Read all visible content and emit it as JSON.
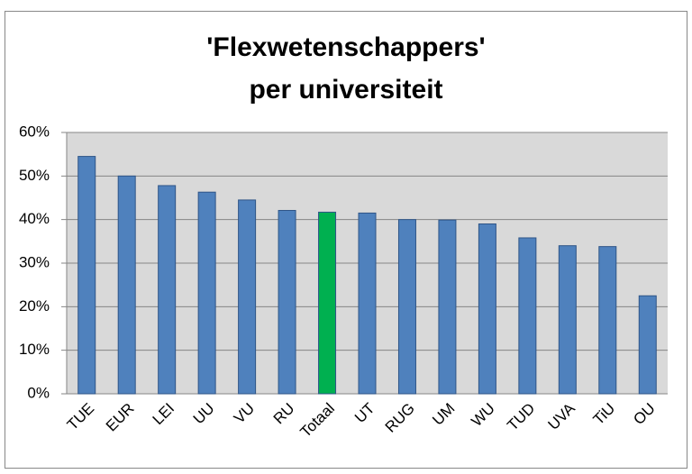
{
  "chart_data": {
    "type": "bar",
    "title": [
      "'Flexwetenschappers'",
      "per universiteit"
    ],
    "categories": [
      "TUE",
      "EUR",
      "LEI",
      "UU",
      "VU",
      "RU",
      "Totaal",
      "UT",
      "RUG",
      "UM",
      "WU",
      "TUD",
      "UVA",
      "TiU",
      "OU"
    ],
    "values": [
      54.5,
      50,
      47.8,
      46.3,
      44.5,
      42.1,
      41.7,
      41.5,
      40,
      39.9,
      39,
      35.8,
      34,
      33.8,
      22.5
    ],
    "colors": [
      "#4f81bd",
      "#4f81bd",
      "#4f81bd",
      "#4f81bd",
      "#4f81bd",
      "#4f81bd",
      "#00b050",
      "#4f81bd",
      "#4f81bd",
      "#4f81bd",
      "#4f81bd",
      "#4f81bd",
      "#4f81bd",
      "#4f81bd",
      "#4f81bd"
    ],
    "ylim": [
      0,
      60
    ],
    "yticks": [
      {
        "value": 0,
        "label": "0%"
      },
      {
        "value": 10,
        "label": "10%"
      },
      {
        "value": 20,
        "label": "20%"
      },
      {
        "value": 30,
        "label": "30%"
      },
      {
        "value": 40,
        "label": "40%"
      },
      {
        "value": 50,
        "label": "50%"
      },
      {
        "value": 60,
        "label": "60%"
      }
    ],
    "grid": true
  }
}
